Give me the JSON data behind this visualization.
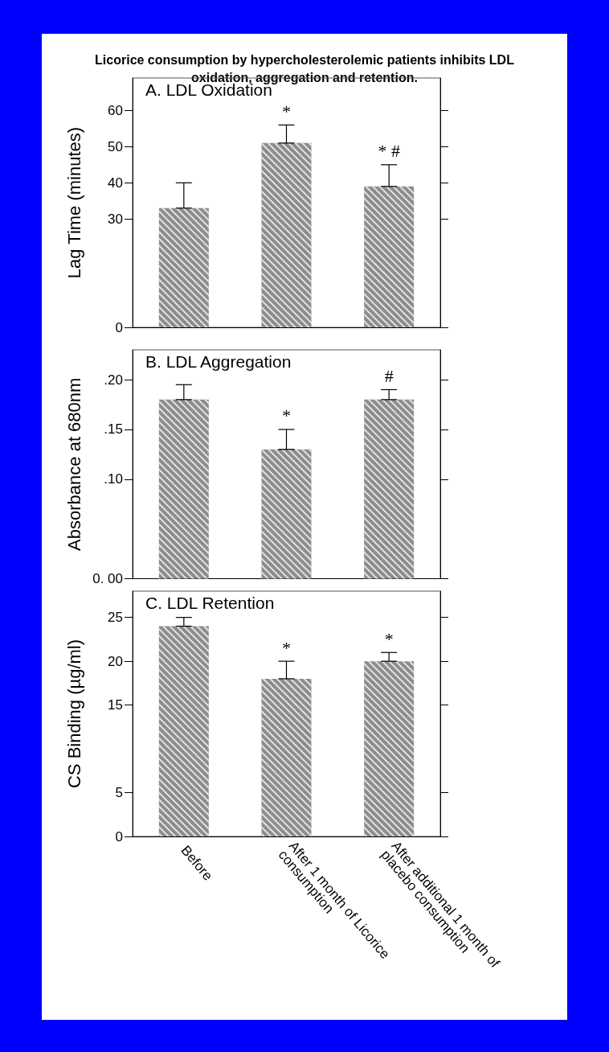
{
  "chart_data": [
    {
      "type": "bar",
      "title": "Licorice consumption by hypercholesterolemic patients inhibits LDL oxidation, aggregation and retention.",
      "subtitle": "A. LDL Oxidation",
      "ylabel": "Lag Time (minutes)",
      "categories": [
        "Before",
        "After 1 month of Licorice consumption",
        "After additional 1 month of placebo consumption"
      ],
      "values": [
        33,
        51,
        39
      ],
      "errors": [
        [
          33,
          40
        ],
        [
          51,
          56
        ],
        [
          39,
          45
        ]
      ],
      "color": "#8c8c8c",
      "ylim": [
        0,
        69
      ],
      "yticks": [
        0,
        30,
        40,
        50,
        60
      ],
      "tick_labels": "y",
      "annotations": [
        "*",
        "* #"
      ]
    },
    {
      "type": "bar",
      "subtitle": "B. LDL Aggregation",
      "ylabel": "Absorbance at 680nm",
      "categories": [
        "Before",
        "After 1 month of Licorice consumption",
        "After additional 1 month of placebo consumption"
      ],
      "values": [
        0.18,
        0.13,
        0.18
      ],
      "errors": [
        [
          0.18,
          0.195
        ],
        [
          0.13,
          0.15
        ],
        [
          0.18,
          0.19
        ]
      ],
      "color": "#8c8c8c",
      "ylim": [
        0,
        0.23
      ],
      "yticks": [
        {
          "value": 0,
          "label": "0. 00"
        },
        {
          "value": 0.1,
          "label": ".10"
        },
        {
          "value": 0.15,
          "label": ".15"
        },
        {
          "value": 0.2,
          "label": ".20"
        }
      ],
      "tick_labels": "y",
      "annotations": [
        "*",
        "#"
      ]
    },
    {
      "type": "bar",
      "subtitle": "C. LDL Retention",
      "ylabel": "CS Binding (µg/ml)",
      "categories": [
        "Before",
        "After 1 month of Licorice consumption",
        "After additional 1 month of placebo consumption"
      ],
      "values": [
        24,
        18,
        20
      ],
      "errors": [
        [
          24,
          25
        ],
        [
          18,
          20
        ],
        [
          20,
          21
        ]
      ],
      "color": "#8c8c8c",
      "ylim": [
        0,
        28
      ],
      "yticks": [
        0,
        5,
        15,
        20,
        25
      ],
      "annotations": [
        "*",
        "*"
      ]
    }
  ]
}
